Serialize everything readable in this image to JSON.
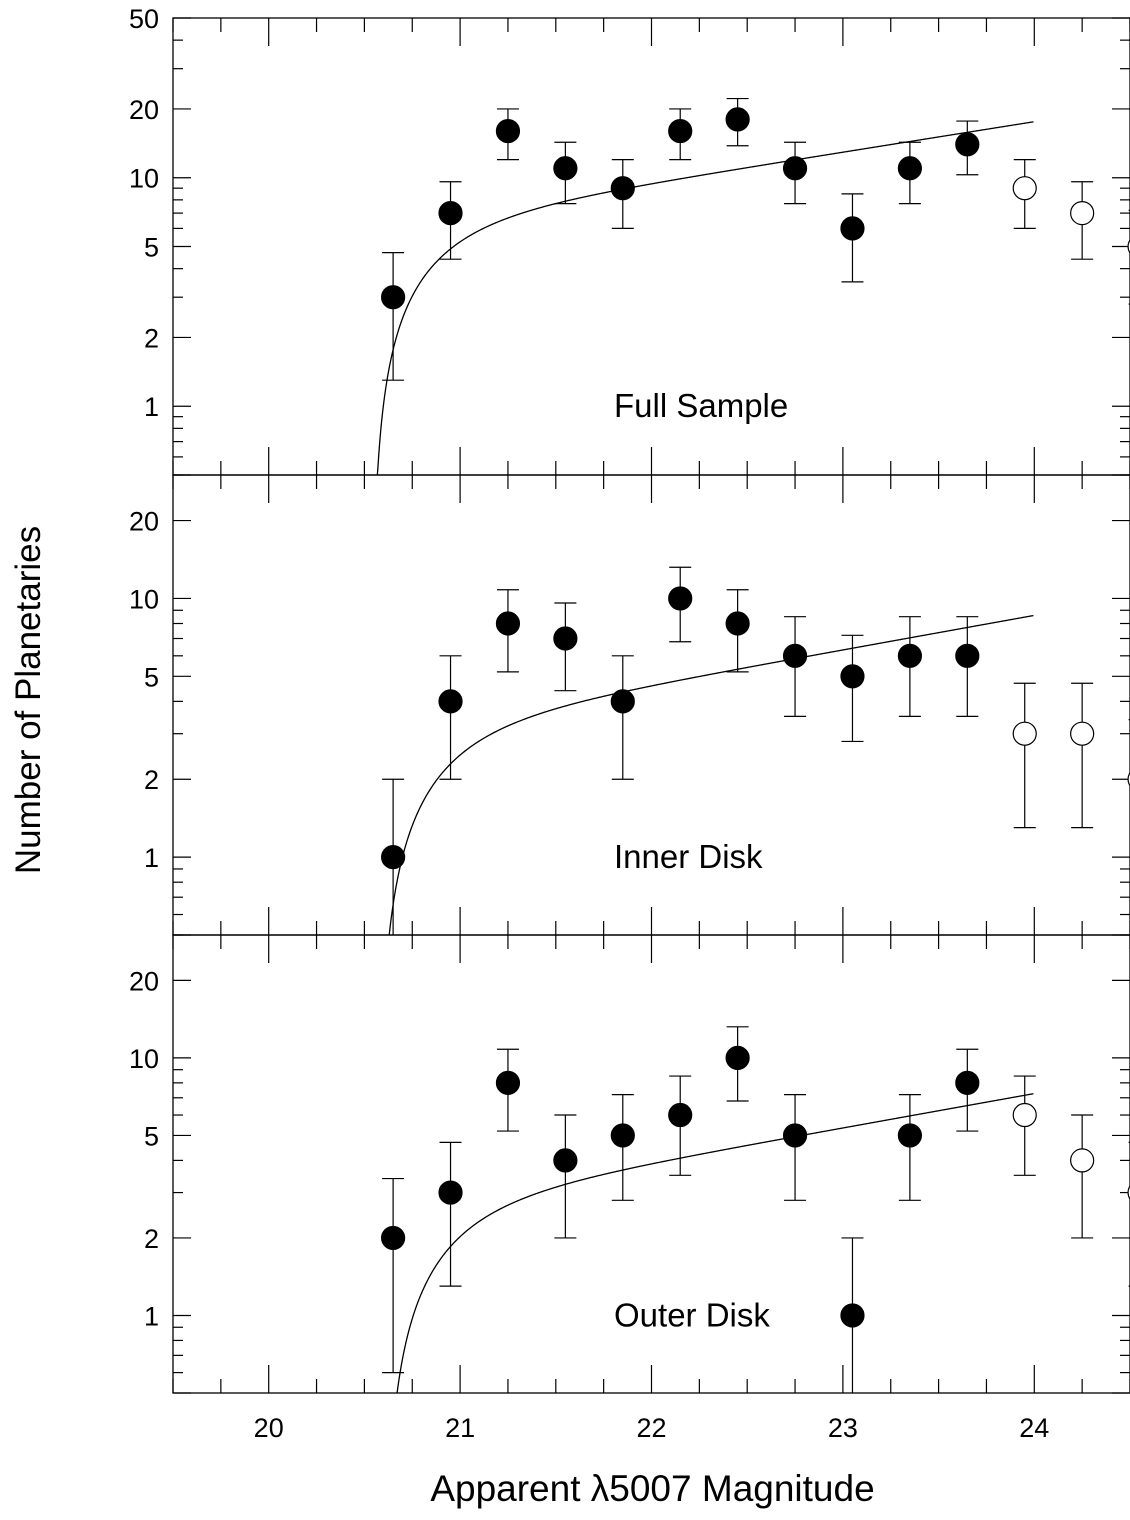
{
  "figure": {
    "ylabel": "Number of Planetaries",
    "xlabel": "Apparent λ5007 Magnitude"
  },
  "chart_data": [
    {
      "type": "scatter",
      "panel_label": "Full Sample",
      "xlim": [
        19.5,
        24.5
      ],
      "ylim": [
        0.5,
        50
      ],
      "yscale": "log",
      "x_ticks": [
        20,
        21,
        22,
        23,
        24
      ],
      "y_ticks": [
        1,
        2,
        5,
        10,
        20,
        50
      ],
      "series": [
        {
          "marker": "filled-circle",
          "points": [
            {
              "x": 20.65,
              "y": 3,
              "err_low": 1.3,
              "err_high": 4.7
            },
            {
              "x": 20.95,
              "y": 7,
              "err_low": 4.4,
              "err_high": 9.6
            },
            {
              "x": 21.25,
              "y": 16,
              "err_low": 12,
              "err_high": 20
            },
            {
              "x": 21.55,
              "y": 11,
              "err_low": 7.7,
              "err_high": 14.3
            },
            {
              "x": 21.85,
              "y": 9,
              "err_low": 6,
              "err_high": 12
            },
            {
              "x": 22.15,
              "y": 16,
              "err_low": 12,
              "err_high": 20
            },
            {
              "x": 22.45,
              "y": 18,
              "err_low": 13.8,
              "err_high": 22.2
            },
            {
              "x": 22.75,
              "y": 11,
              "err_low": 7.7,
              "err_high": 14.3
            },
            {
              "x": 23.05,
              "y": 6,
              "err_low": 3.5,
              "err_high": 8.5
            },
            {
              "x": 23.35,
              "y": 11,
              "err_low": 7.7,
              "err_high": 14.3
            },
            {
              "x": 23.65,
              "y": 14,
              "err_low": 10.3,
              "err_high": 17.7
            }
          ]
        },
        {
          "marker": "open-circle",
          "points": [
            {
              "x": 23.95,
              "y": 9,
              "err_low": 6,
              "err_high": 12
            },
            {
              "x": 24.25,
              "y": 7,
              "err_low": 4.4,
              "err_high": 9.6
            },
            {
              "x": 24.55,
              "y": 5,
              "err_low": 2.8,
              "err_high": 7.2
            }
          ]
        }
      ],
      "fit_curve": {
        "m_cutoff": 20.54,
        "scale": 6.08,
        "x_end": 24
      }
    },
    {
      "type": "scatter",
      "panel_label": "Inner Disk",
      "xlim": [
        19.5,
        24.5
      ],
      "ylim": [
        0.5,
        30
      ],
      "yscale": "log",
      "x_ticks": [
        20,
        21,
        22,
        23,
        24
      ],
      "y_ticks": [
        1,
        2,
        5,
        10,
        20
      ],
      "series": [
        {
          "marker": "filled-circle",
          "points": [
            {
              "x": 20.65,
              "y": 1,
              "err_low": 0.4,
              "err_high": 2
            },
            {
              "x": 20.95,
              "y": 4,
              "err_low": 2,
              "err_high": 6
            },
            {
              "x": 21.25,
              "y": 8,
              "err_low": 5.2,
              "err_high": 10.8
            },
            {
              "x": 21.55,
              "y": 7,
              "err_low": 4.4,
              "err_high": 9.6
            },
            {
              "x": 21.85,
              "y": 4,
              "err_low": 2,
              "err_high": 6
            },
            {
              "x": 22.15,
              "y": 10,
              "err_low": 6.8,
              "err_high": 13.2
            },
            {
              "x": 22.45,
              "y": 8,
              "err_low": 5.2,
              "err_high": 10.8
            },
            {
              "x": 22.75,
              "y": 6,
              "err_low": 3.5,
              "err_high": 8.5
            },
            {
              "x": 23.05,
              "y": 5,
              "err_low": 2.8,
              "err_high": 7.2
            },
            {
              "x": 23.35,
              "y": 6,
              "err_low": 3.5,
              "err_high": 8.5
            },
            {
              "x": 23.65,
              "y": 6,
              "err_low": 3.5,
              "err_high": 8.5
            }
          ]
        },
        {
          "marker": "open-circle",
          "points": [
            {
              "x": 23.95,
              "y": 3,
              "err_low": 1.3,
              "err_high": 4.7
            },
            {
              "x": 24.25,
              "y": 3,
              "err_low": 1.3,
              "err_high": 4.7
            },
            {
              "x": 24.55,
              "y": 2,
              "err_low": 0.6,
              "err_high": 3.4
            }
          ]
        }
      ],
      "fit_curve": {
        "m_cutoff": 20.57,
        "scale": 3.0,
        "x_end": 24
      }
    },
    {
      "type": "scatter",
      "panel_label": "Outer Disk",
      "xlim": [
        19.5,
        24.5
      ],
      "ylim": [
        0.5,
        30
      ],
      "yscale": "log",
      "x_ticks": [
        20,
        21,
        22,
        23,
        24
      ],
      "y_ticks": [
        1,
        2,
        5,
        10,
        20
      ],
      "series": [
        {
          "marker": "filled-circle",
          "points": [
            {
              "x": 20.65,
              "y": 2,
              "err_low": 0.6,
              "err_high": 3.4
            },
            {
              "x": 20.95,
              "y": 3,
              "err_low": 1.3,
              "err_high": 4.7
            },
            {
              "x": 21.25,
              "y": 8,
              "err_low": 5.2,
              "err_high": 10.8
            },
            {
              "x": 21.55,
              "y": 4,
              "err_low": 2,
              "err_high": 6
            },
            {
              "x": 21.85,
              "y": 5,
              "err_low": 2.8,
              "err_high": 7.2
            },
            {
              "x": 22.15,
              "y": 6,
              "err_low": 3.5,
              "err_high": 8.5
            },
            {
              "x": 22.45,
              "y": 10,
              "err_low": 6.8,
              "err_high": 13.2
            },
            {
              "x": 22.75,
              "y": 5,
              "err_low": 2.8,
              "err_high": 7.2
            },
            {
              "x": 23.05,
              "y": 1,
              "err_low": 0.4,
              "err_high": 2
            },
            {
              "x": 23.35,
              "y": 5,
              "err_low": 2.8,
              "err_high": 7.2
            },
            {
              "x": 23.65,
              "y": 8,
              "err_low": 5.2,
              "err_high": 10.8
            }
          ]
        },
        {
          "marker": "open-circle",
          "points": [
            {
              "x": 23.95,
              "y": 6,
              "err_low": 3.5,
              "err_high": 8.5
            },
            {
              "x": 24.25,
              "y": 4,
              "err_low": 2,
              "err_high": 6
            },
            {
              "x": 24.55,
              "y": 3,
              "err_low": 1.3,
              "err_high": 4.7
            }
          ]
        }
      ],
      "fit_curve": {
        "m_cutoff": 20.6,
        "scale": 2.56,
        "x_end": 24
      }
    }
  ]
}
